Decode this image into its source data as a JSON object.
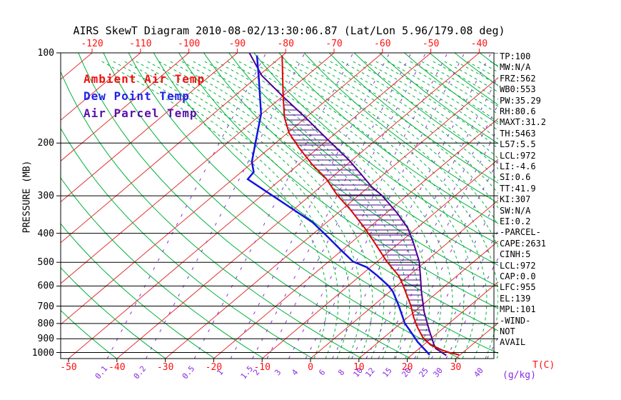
{
  "title": "AIRS SkewT Diagram 2010-08-02/13:30:06.87 (Lat/Lon 5.96/179.08 deg)",
  "chart_data": {
    "type": "line",
    "subtype": "skewt-log-p",
    "y_axis": {
      "label": "PRESSURE (MB)",
      "scale": "log",
      "range": [
        100,
        1050
      ],
      "ticks": [
        100,
        200,
        300,
        400,
        500,
        600,
        700,
        800,
        900,
        1000
      ]
    },
    "x_axis_top": {
      "ticks": [
        -120,
        -110,
        -100,
        -90,
        -80,
        -70,
        -60,
        -50,
        -40
      ]
    },
    "x_axis_bottom": {
      "label": "T(C)",
      "ticks": [
        -50,
        -40,
        -30,
        -20,
        -10,
        0,
        10,
        20,
        30
      ]
    },
    "mixing_ratio_axis": {
      "label": "(g/kg)",
      "ticks": [
        {
          "value": "0.1",
          "t_at_1000mb": -42.0
        },
        {
          "value": "0.2",
          "t_at_1000mb": -34.0
        },
        {
          "value": "0.5",
          "t_at_1000mb": -24.0
        },
        {
          "value": "1",
          "t_at_1000mb": -16.5
        },
        {
          "value": "1.5",
          "t_at_1000mb": -12.0
        },
        {
          "value": "2",
          "t_at_1000mb": -9.0
        },
        {
          "value": "3",
          "t_at_1000mb": -4.5
        },
        {
          "value": "4",
          "t_at_1000mb": -1.0
        },
        {
          "value": "6",
          "t_at_1000mb": 4.5
        },
        {
          "value": "8",
          "t_at_1000mb": 8.5
        },
        {
          "value": "10",
          "t_at_1000mb": 11.5
        },
        {
          "value": "12",
          "t_at_1000mb": 14.0
        },
        {
          "value": "15",
          "t_at_1000mb": 17.5
        },
        {
          "value": "20",
          "t_at_1000mb": 21.5
        },
        {
          "value": "25",
          "t_at_1000mb": 25.0
        },
        {
          "value": "30",
          "t_at_1000mb": 28.0
        },
        {
          "value": "40",
          "t_at_1000mb": 36.5
        }
      ]
    },
    "legend": [
      {
        "label": "Ambient Air Temp",
        "color": "#ee1111"
      },
      {
        "label": "Dew Point Temp",
        "color": "#2020ee"
      },
      {
        "label": "Air Parcel Temp",
        "color": "#5a11a8"
      }
    ],
    "sounding": {
      "ambient_air_temp": [
        [
          102,
          -80.1
        ],
        [
          137,
          -70.5
        ],
        [
          164,
          -64.5
        ],
        [
          185,
          -59.7
        ],
        [
          207,
          -54.1
        ],
        [
          237,
          -46.9
        ],
        [
          262,
          -41.0
        ],
        [
          299,
          -34.4
        ],
        [
          335,
          -28.0
        ],
        [
          384,
          -20.8
        ],
        [
          426,
          -15.6
        ],
        [
          497,
          -8.0
        ],
        [
          554,
          -2.1
        ],
        [
          598,
          1.3
        ],
        [
          626,
          3.2
        ],
        [
          698,
          7.8
        ],
        [
          761,
          11.1
        ],
        [
          825,
          14.5
        ],
        [
          890,
          18.0
        ],
        [
          944,
          21.5
        ],
        [
          980,
          24.9
        ],
        [
          1002,
          27.4
        ],
        [
          1018,
          29.8
        ]
      ],
      "dew_point_temp": [
        [
          102,
          -85.3
        ],
        [
          122,
          -79.2
        ],
        [
          160,
          -70.1
        ],
        [
          196,
          -64.7
        ],
        [
          231,
          -60.3
        ],
        [
          250,
          -57.4
        ],
        [
          264,
          -56.9
        ],
        [
          299,
          -47.9
        ],
        [
          368,
          -32.9
        ],
        [
          406,
          -27.0
        ],
        [
          458,
          -19.9
        ],
        [
          497,
          -15.0
        ],
        [
          519,
          -10.8
        ],
        [
          554,
          -6.5
        ],
        [
          598,
          -1.8
        ],
        [
          626,
          0.6
        ],
        [
          698,
          5.3
        ],
        [
          800,
          10.9
        ],
        [
          845,
          13.7
        ],
        [
          921,
          18.0
        ],
        [
          1018,
          23.7
        ]
      ],
      "air_parcel_temp": [
        [
          100,
          -87.5
        ],
        [
          119,
          -79.4
        ],
        [
          140,
          -69.8
        ],
        [
          164,
          -60.2
        ],
        [
          193,
          -50.6
        ],
        [
          227,
          -40.9
        ],
        [
          255,
          -34.5
        ],
        [
          280,
          -29.4
        ],
        [
          299,
          -25.2
        ],
        [
          342,
          -17.8
        ],
        [
          384,
          -11.9
        ],
        [
          426,
          -7.5
        ],
        [
          497,
          -1.3
        ],
        [
          554,
          2.4
        ],
        [
          626,
          6.5
        ],
        [
          733,
          12.1
        ],
        [
          845,
          17.7
        ],
        [
          939,
          22.0
        ],
        [
          968,
          23.3
        ],
        [
          1023,
          27.3
        ]
      ]
    },
    "stats": [
      "TP:100",
      "MW:N/A",
      "FRZ:562",
      "WB0:553",
      "PW:35.29",
      "RH:80.6",
      "MAXT:31.2",
      "TH:5463",
      "L57:5.5",
      "LCL:972",
      "LI:-4.6",
      "SI:0.6",
      "TT:41.9",
      "KI:307",
      "SW:N/A",
      "EI:0.2",
      "-PARCEL-",
      "CAPE:2631",
      "CINH:5",
      "LCL:972",
      "CAP:0.0",
      "LFC:955",
      "EL:139",
      "MPL:101",
      "-WIND-",
      "NOT",
      "AVAIL"
    ],
    "colors": {
      "isotherm": "#e03030",
      "dry_adiabat": "#00b23c",
      "moist_adiabat": "#00b23c",
      "mixing_ratio": "#8a2be2",
      "pressure_line": "#000000",
      "ambient": "#e00000",
      "dewpoint": "#1414e0",
      "parcel": "#4b0090",
      "top_label": "#ff1010",
      "bottom_label": "#ff1010"
    }
  }
}
